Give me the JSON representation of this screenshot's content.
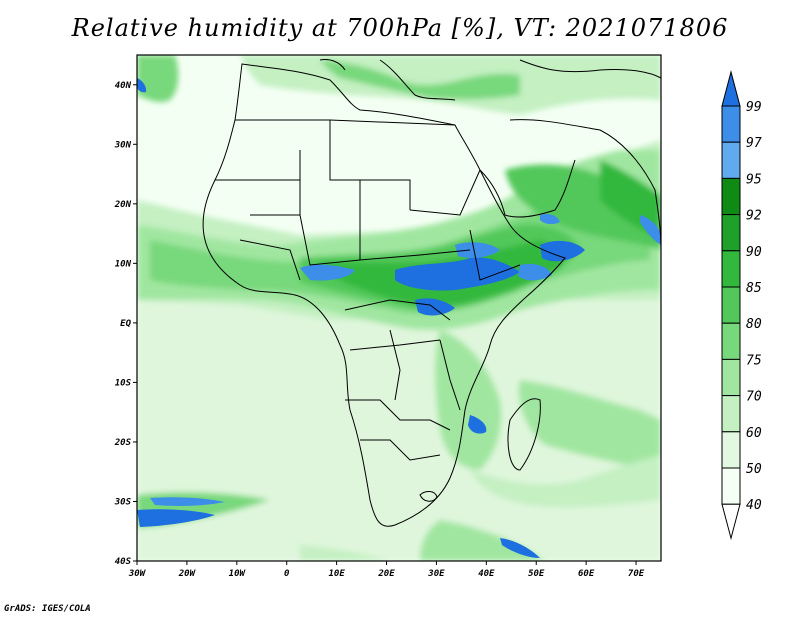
{
  "title": "Relative humidity at 700hPa [%], VT: 2021071806",
  "credit": "GrADS: IGES/COLA",
  "map": {
    "lon_labels": [
      "30W",
      "20W",
      "10W",
      "0",
      "10E",
      "20E",
      "30E",
      "40E",
      "50E",
      "60E",
      "70E"
    ],
    "lat_labels": [
      "40N",
      "30N",
      "20N",
      "10N",
      "EQ",
      "10S",
      "20S",
      "30S",
      "40S"
    ]
  },
  "colorbar": {
    "levels": [
      "99",
      "97",
      "95",
      "92",
      "90",
      "85",
      "80",
      "75",
      "70",
      "60",
      "50",
      "40"
    ],
    "colors": [
      "#1e6fe0",
      "#3c8ee8",
      "#60aaf0",
      "#0f8a14",
      "#1ea02a",
      "#33b83e",
      "#52c85a",
      "#78d87c",
      "#a0e6a0",
      "#c4f0c2",
      "#e2f8e0",
      "#f6fff6"
    ]
  }
}
